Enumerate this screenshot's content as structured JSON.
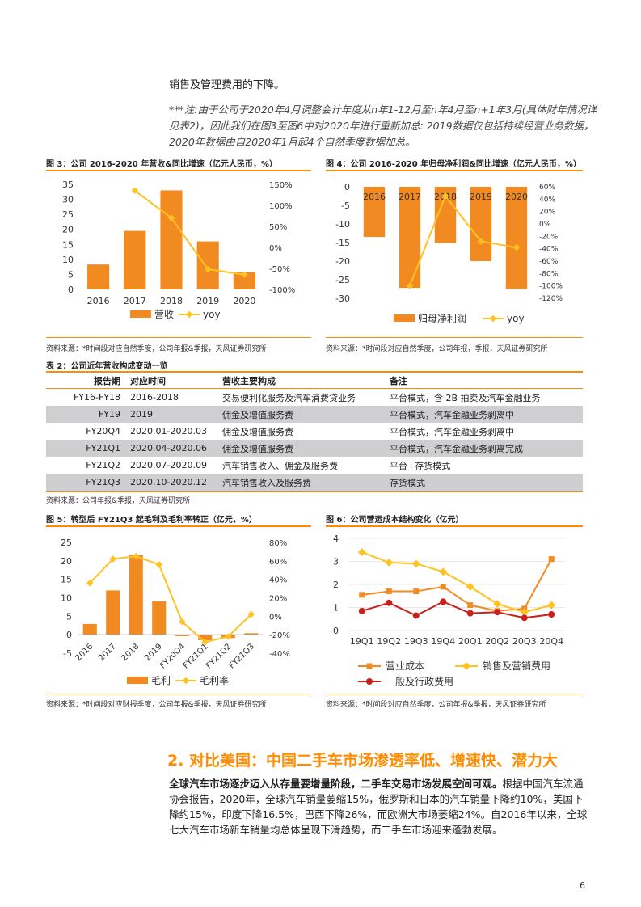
{
  "intro_line": "销售及管理费用的下降。",
  "note": "***注:由于公司于2020年4月调整会计年度从n年1-12月至n年4月至n+1年3月(具体财年情况详见表2)，因此我们在图3至图6中对2020年进行重新加总: 2019数据仅包括持续经营业务数据，2020年数据由自2020年1月起4个自然季度数据加总。",
  "fig3": {
    "title": "图 3：公司 2016-2020 年营收&同比增速（亿元人民币，%）",
    "source": "资料来源：*时间段对应自然季度，公司年报&季报，天风证券研究所"
  },
  "fig4": {
    "title": "图 4：公司 2016-2020 年归母净利润&同比增速（亿元人民币，%）",
    "source": "资料来源：*时间段对应自然季度，公司年报，季报，天风证券研究所"
  },
  "table2": {
    "title": "表 2：公司近年营收构成变动一览",
    "headers": [
      "报告期",
      "对应时间",
      "营收主要构成",
      "备注"
    ],
    "rows": [
      [
        "FY16-FY18",
        "2016-2018",
        "交易便利化服务及汽车消费贷业务",
        "平台模式，含 2B 拍卖及汽车金融业务"
      ],
      [
        "FY19",
        "2019",
        "佣金及增值服务费",
        "平台模式，汽车金融业务剥离中"
      ],
      [
        "FY20Q4",
        "2020.01-2020.03",
        "佣金及增值服务费",
        "平台模式，汽车金融业务剥离中"
      ],
      [
        "FY21Q1",
        "2020.04-2020.06",
        "佣金及增值服务费",
        "平台模式，汽车金融业务剥离完成"
      ],
      [
        "FY21Q2",
        "2020.07-2020.09",
        "汽车销售收入、佣金及服务费",
        "平台+存货模式"
      ],
      [
        "FY21Q3",
        "2020.10-2020.12",
        "汽车销售收入及服务费",
        "存货模式"
      ]
    ],
    "source": "资料来源：公司年报&季报，天风证券研究所"
  },
  "fig5": {
    "title": "图 5：转型后 FY21Q3 起毛利及毛利率转正（亿元，%）",
    "source": "资料来源：*时间段对应财报季度，公司年报&季报，天风证券研究所"
  },
  "fig6": {
    "title": "图 6：公司营运成本结构变化（亿元）",
    "source": "资料来源：*时间段对应自然季度，公司年报&季报，天风证券研究所"
  },
  "section": {
    "heading": "2. 对比美国：中国二手车市场渗透率低、增速快、潜力大",
    "lead": "全球汽车市场逐步迈入从存量要增量阶段，二手车交易市场发展空间可观。",
    "text": "根据中国汽车流通协会报告，2020年，全球汽车销量萎缩15%，俄罗斯和日本的汽车销量下降约10%，美国下降约15%，印度下降16.5%，巴西下降26%，而欧洲大市场萎缩24%。自2016年以来，全球七大汽车市场新车销量均总体呈现下滑趋势，而二手车市场迎来蓬勃发展。"
  },
  "page_number": "6",
  "chart_data": [
    {
      "type": "bar",
      "categories": [
        "2016",
        "2017",
        "2018",
        "2019",
        "2020"
      ],
      "series": [
        {
          "name": "营收",
          "kind": "bar",
          "axis": "left",
          "values": [
            8.3,
            19.5,
            33.0,
            16.0,
            5.7
          ]
        },
        {
          "name": "yoy",
          "kind": "line",
          "axis": "right",
          "values": [
            null,
            135,
            70,
            -52,
            -65
          ]
        }
      ],
      "ylim": [
        0,
        35
      ],
      "yticks": [
        0,
        5,
        10,
        15,
        20,
        25,
        30,
        35
      ],
      "y2lim": [
        -100,
        150
      ],
      "y2ticks": [
        "-100%",
        "-50%",
        "0%",
        "50%",
        "100%",
        "150%"
      ],
      "legend": "bottom"
    },
    {
      "type": "bar",
      "categories": [
        "2016",
        "2017",
        "2018",
        "2019",
        "2020"
      ],
      "series": [
        {
          "name": "归母净利润",
          "kind": "bar",
          "axis": "left",
          "values": [
            -13.5,
            -27.2,
            -15.1,
            -20.0,
            -27.5
          ]
        },
        {
          "name": "yoy",
          "kind": "line",
          "axis": "right",
          "values": [
            null,
            -100,
            45,
            -28,
            -38
          ]
        }
      ],
      "ylim": [
        -30,
        0
      ],
      "yticks": [
        0,
        -5,
        -10,
        -15,
        -20,
        -25,
        -30
      ],
      "y2lim": [
        -120,
        60
      ],
      "y2ticks": [
        "60%",
        "40%",
        "20%",
        "0%",
        "-20%",
        "-40%",
        "-60%",
        "-80%",
        "-100%",
        "-120%"
      ],
      "legend": "bottom"
    },
    {
      "type": "bar",
      "categories": [
        "2016",
        "2017",
        "2018",
        "2019",
        "FY20Q4",
        "FY21Q1",
        "FY21Q2",
        "FY21Q3"
      ],
      "series": [
        {
          "name": "毛利",
          "kind": "bar",
          "axis": "left",
          "values": [
            2.9,
            12.0,
            21.6,
            9.0,
            -0.4,
            -1.5,
            -0.9,
            0.4
          ]
        },
        {
          "name": "毛利率",
          "kind": "line",
          "axis": "right",
          "values": [
            36,
            62,
            65,
            56,
            -6,
            -28,
            -22,
            2
          ]
        }
      ],
      "ylim": [
        -5,
        25
      ],
      "yticks": [
        -5,
        0,
        5,
        10,
        15,
        20,
        25
      ],
      "y2lim": [
        -40,
        80
      ],
      "y2ticks": [
        "-40%",
        "-20%",
        "0%",
        "20%",
        "40%",
        "60%",
        "80%"
      ],
      "legend": "bottom"
    },
    {
      "type": "line",
      "categories": [
        "19Q1",
        "19Q2",
        "19Q3",
        "19Q4",
        "20Q1",
        "20Q2",
        "20Q3",
        "20Q4"
      ],
      "series": [
        {
          "name": "营业成本",
          "values": [
            1.55,
            1.7,
            1.7,
            1.9,
            1.1,
            0.85,
            0.95,
            3.1
          ]
        },
        {
          "name": "销售及营销费用",
          "values": [
            3.4,
            2.95,
            2.9,
            2.55,
            1.9,
            1.15,
            0.8,
            1.1
          ]
        },
        {
          "name": "一般及行政费用",
          "values": [
            0.85,
            1.2,
            0.65,
            1.25,
            0.75,
            0.8,
            0.55,
            0.7
          ]
        }
      ],
      "ylim": [
        0,
        4
      ],
      "yticks": [
        0,
        1,
        2,
        3,
        4
      ],
      "legend": "bottom"
    }
  ]
}
